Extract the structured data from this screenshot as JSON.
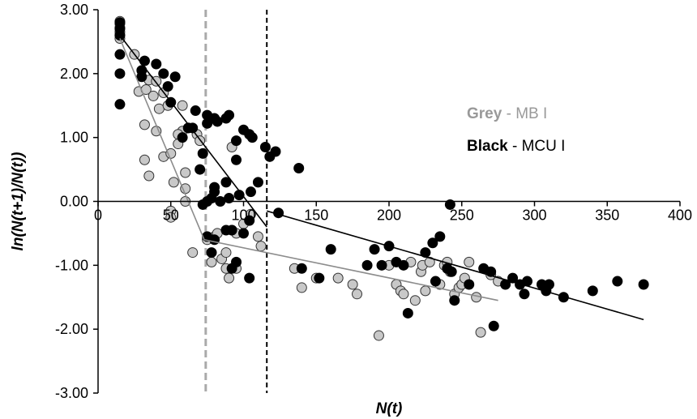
{
  "chart_data": {
    "type": "scatter",
    "xlabel": "N(t)",
    "ylabel": "ln(N(t+1)/N(t))",
    "xlim": [
      0,
      400
    ],
    "ylim": [
      -3,
      3
    ],
    "x_ticks": [
      "0",
      "50",
      "100",
      "150",
      "200",
      "250",
      "300",
      "350",
      "400"
    ],
    "y_ticks": [
      "3.00",
      "2.00",
      "1.00",
      "0.00",
      "-1.00",
      "-2.00",
      "-3.00"
    ],
    "grid": false,
    "legend_position": "right",
    "legend": [
      {
        "bold": "Grey",
        "rest": " - MB I",
        "color": "#999999"
      },
      {
        "bold": "Black",
        "rest": " - MCU I",
        "color": "#000000"
      }
    ],
    "thresholds": [
      {
        "series": "MB I",
        "x": 74,
        "color": "#aaaaaa",
        "style": "dashed"
      },
      {
        "series": "MCU I",
        "x": 116,
        "color": "#000000",
        "style": "dashed"
      }
    ],
    "series": [
      {
        "name": "MB I",
        "color": "#c8c8c8",
        "stroke": "#333333",
        "fit_color": "#8c8c8c",
        "fit_segments": [
          [
            [
              15,
              2.55
            ],
            [
              73,
              -0.6
            ]
          ],
          [
            [
              73,
              -0.6
            ],
            [
              275,
              -1.55
            ]
          ]
        ],
        "points": [
          [
            15,
            2.82
          ],
          [
            15,
            2.78
          ],
          [
            15,
            2.72
          ],
          [
            15,
            2.65
          ],
          [
            15,
            2.6
          ],
          [
            15,
            2.55
          ],
          [
            25,
            2.3
          ],
          [
            28,
            1.72
          ],
          [
            33,
            1.75
          ],
          [
            35,
            1.9
          ],
          [
            38,
            1.65
          ],
          [
            40,
            1.88
          ],
          [
            42,
            1.45
          ],
          [
            45,
            1.7
          ],
          [
            48,
            1.5
          ],
          [
            32,
            1.2
          ],
          [
            40,
            1.1
          ],
          [
            35,
            0.4
          ],
          [
            32,
            0.65
          ],
          [
            45,
            0.7
          ],
          [
            50,
            0.75
          ],
          [
            58,
            1.5
          ],
          [
            58,
            1.1
          ],
          [
            62,
            1.15
          ],
          [
            68,
            1.05
          ],
          [
            70,
            0.95
          ],
          [
            55,
            1.05
          ],
          [
            55,
            0.9
          ],
          [
            52,
            0.3
          ],
          [
            60,
            0.45
          ],
          [
            60,
            0.2
          ],
          [
            60,
            0.0
          ],
          [
            50,
            -0.15
          ],
          [
            50,
            -0.25
          ],
          [
            65,
            -0.8
          ],
          [
            75,
            -0.6
          ],
          [
            78,
            -0.95
          ],
          [
            80,
            -0.55
          ],
          [
            82,
            -0.5
          ],
          [
            85,
            -0.9
          ],
          [
            88,
            -0.8
          ],
          [
            88,
            -1.05
          ],
          [
            90,
            -1.2
          ],
          [
            95,
            -1.05
          ],
          [
            92,
            -0.45
          ],
          [
            95,
            -0.5
          ],
          [
            92,
            0.85
          ],
          [
            100,
            -0.35
          ],
          [
            105,
            -0.2
          ],
          [
            110,
            -0.55
          ],
          [
            112,
            -0.7
          ],
          [
            135,
            -1.05
          ],
          [
            140,
            -1.35
          ],
          [
            150,
            -1.2
          ],
          [
            165,
            -1.2
          ],
          [
            175,
            -1.3
          ],
          [
            178,
            -1.45
          ],
          [
            193,
            -2.1
          ],
          [
            200,
            -1.0
          ],
          [
            205,
            -1.3
          ],
          [
            208,
            -1.4
          ],
          [
            210,
            -1.45
          ],
          [
            215,
            -0.95
          ],
          [
            218,
            -1.55
          ],
          [
            222,
            -1.1
          ],
          [
            223,
            -1.0
          ],
          [
            225,
            -1.4
          ],
          [
            228,
            -0.95
          ],
          [
            235,
            -1.3
          ],
          [
            238,
            -1.0
          ],
          [
            240,
            -0.95
          ],
          [
            242,
            -1.1
          ],
          [
            245,
            -1.45
          ],
          [
            248,
            -1.35
          ],
          [
            250,
            -1.3
          ],
          [
            252,
            -1.2
          ],
          [
            255,
            -0.95
          ],
          [
            260,
            -1.5
          ],
          [
            263,
            -2.05
          ],
          [
            270,
            -1.15
          ],
          [
            275,
            -1.25
          ]
        ]
      },
      {
        "name": "MCU I",
        "color": "#000000",
        "stroke": "#000000",
        "fit_color": "#000000",
        "fit_segments": [
          [
            [
              15,
              2.6
            ],
            [
              116,
              -0.4
            ]
          ],
          [
            [
              116,
              -0.15
            ],
            [
              375,
              -1.85
            ]
          ]
        ],
        "points": [
          [
            15,
            2.8
          ],
          [
            15,
            2.7
          ],
          [
            15,
            2.6
          ],
          [
            15,
            2.3
          ],
          [
            15,
            2.0
          ],
          [
            15,
            1.52
          ],
          [
            30,
            2.05
          ],
          [
            32,
            2.2
          ],
          [
            40,
            2.15
          ],
          [
            45,
            2.0
          ],
          [
            48,
            1.8
          ],
          [
            53,
            1.95
          ],
          [
            50,
            1.55
          ],
          [
            30,
            1.95
          ],
          [
            58,
            1.0
          ],
          [
            62,
            1.15
          ],
          [
            65,
            1.15
          ],
          [
            67,
            1.42
          ],
          [
            70,
            0.5
          ],
          [
            72,
            0.75
          ],
          [
            75,
            1.35
          ],
          [
            75,
            1.22
          ],
          [
            80,
            1.3
          ],
          [
            82,
            1.25
          ],
          [
            88,
            1.3
          ],
          [
            90,
            1.35
          ],
          [
            95,
            0.95
          ],
          [
            100,
            1.12
          ],
          [
            104,
            1.05
          ],
          [
            106,
            1.0
          ],
          [
            72,
            -0.05
          ],
          [
            75,
            0.0
          ],
          [
            78,
            0.05
          ],
          [
            80,
            0.15
          ],
          [
            80,
            0.22
          ],
          [
            84,
            0.0
          ],
          [
            88,
            0.3
          ],
          [
            90,
            0.05
          ],
          [
            95,
            0.65
          ],
          [
            97,
            0.1
          ],
          [
            105,
            0.15
          ],
          [
            110,
            0.3
          ],
          [
            115,
            0.85
          ],
          [
            118,
            0.7
          ],
          [
            122,
            0.78
          ],
          [
            75,
            -0.55
          ],
          [
            80,
            -0.6
          ],
          [
            88,
            -0.45
          ],
          [
            92,
            -0.45
          ],
          [
            100,
            -0.5
          ],
          [
            104,
            -0.3
          ],
          [
            78,
            -0.8
          ],
          [
            95,
            -0.95
          ],
          [
            92,
            -1.05
          ],
          [
            104,
            -1.2
          ],
          [
            124,
            -0.18
          ],
          [
            138,
            0.52
          ],
          [
            140,
            -1.05
          ],
          [
            152,
            -1.2
          ],
          [
            160,
            -0.75
          ],
          [
            185,
            -1.0
          ],
          [
            190,
            -0.75
          ],
          [
            195,
            -1.0
          ],
          [
            200,
            -0.7
          ],
          [
            205,
            -0.95
          ],
          [
            210,
            -1.0
          ],
          [
            213,
            -1.75
          ],
          [
            225,
            -0.8
          ],
          [
            230,
            -0.65
          ],
          [
            232,
            -1.25
          ],
          [
            235,
            -0.55
          ],
          [
            240,
            -1.05
          ],
          [
            242,
            -0.05
          ],
          [
            243,
            -1.1
          ],
          [
            245,
            -1.55
          ],
          [
            255,
            -1.3
          ],
          [
            265,
            -1.05
          ],
          [
            270,
            -1.1
          ],
          [
            272,
            -1.95
          ],
          [
            280,
            -1.3
          ],
          [
            285,
            -1.2
          ],
          [
            290,
            -1.3
          ],
          [
            293,
            -1.45
          ],
          [
            295,
            -1.25
          ],
          [
            305,
            -1.3
          ],
          [
            308,
            -1.4
          ],
          [
            310,
            -1.3
          ],
          [
            320,
            -1.5
          ],
          [
            340,
            -1.4
          ],
          [
            357,
            -1.25
          ],
          [
            375,
            -1.3
          ]
        ]
      }
    ]
  }
}
